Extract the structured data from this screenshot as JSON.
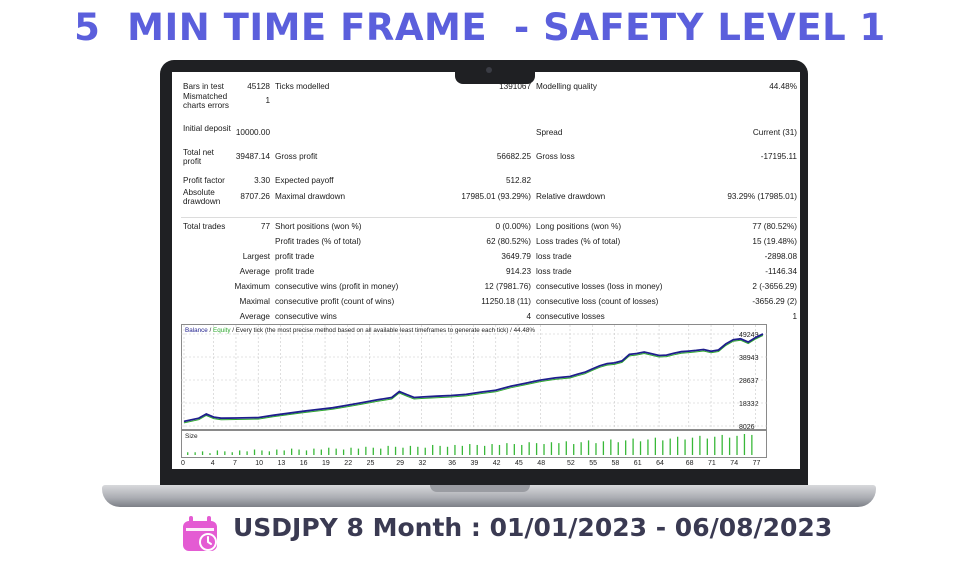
{
  "headline": "5  MIN TIME FRAME  - SAFETY LEVEL 1",
  "footer": "USDJPY 8 Month : 01/01/2023 - 06/08/2023",
  "colors": {
    "headline": "#5b5fdc",
    "footer_text": "#3a3a52",
    "calendar": "#e45bd3",
    "balance": "#1e1e8c",
    "equity": "#2ea82e",
    "volume": "#38b838"
  },
  "icons": {
    "footer": "calendar-clock-icon"
  },
  "report": {
    "rows": [
      {
        "l1": "Bars in test",
        "v1": "45128",
        "l2": "Ticks modelled",
        "v2": "1391067",
        "l3": "Modelling quality",
        "v3": "44.48%"
      },
      {
        "l1": "Mismatched charts errors",
        "v1": "1",
        "l2": "",
        "v2": "",
        "l3": "",
        "v3": ""
      },
      {
        "l1": "Initial deposit",
        "v1": "10000.00",
        "l2": "",
        "v2": "",
        "l3": "Spread",
        "v3": "Current (31)"
      },
      {
        "l1": "Total net profit",
        "v1": "39487.14",
        "l2": "Gross profit",
        "v2": "56682.25",
        "l3": "Gross loss",
        "v3": "-17195.11"
      },
      {
        "l1": "Profit factor",
        "v1": "3.30",
        "l2": "Expected payoff",
        "v2": "512.82",
        "l3": "",
        "v3": ""
      },
      {
        "l1": "Absolute drawdown",
        "v1": "8707.26",
        "l2": "Maximal drawdown",
        "v2": "17985.01 (93.29%)",
        "l3": "Relative drawdown",
        "v3": "93.29% (17985.01)"
      },
      {
        "l1": "Total trades",
        "v1": "77",
        "l2": "Short positions (won %)",
        "v2": "0 (0.00%)",
        "l3": "Long positions (won %)",
        "v3": "77 (80.52%)"
      },
      {
        "l1": "",
        "v1": "",
        "l2": "Profit trades (% of total)",
        "v2": "62 (80.52%)",
        "l3": "Loss trades (% of total)",
        "v3": "15 (19.48%)"
      },
      {
        "l1": "",
        "v1": "Largest",
        "l2": "profit trade",
        "v2": "3649.79",
        "l3": "loss trade",
        "v3": "-2898.08"
      },
      {
        "l1": "",
        "v1": "Average",
        "l2": "profit trade",
        "v2": "914.23",
        "l3": "loss trade",
        "v3": "-1146.34"
      },
      {
        "l1": "",
        "v1": "Maximum",
        "l2": "consecutive wins (profit in money)",
        "v2": "12 (7981.76)",
        "l3": "consecutive losses (loss in money)",
        "v3": "2 (-3656.29)"
      },
      {
        "l1": "",
        "v1": "Maximal",
        "l2": "consecutive profit (count of wins)",
        "v2": "11250.18 (11)",
        "l3": "consecutive loss (count of losses)",
        "v3": "-3656.29 (2)"
      },
      {
        "l1": "",
        "v1": "Average",
        "l2": "consecutive wins",
        "v2": "4",
        "l3": "consecutive losses",
        "v3": "1"
      }
    ]
  },
  "chart_data": {
    "type": "line",
    "legend": {
      "balance": "Balance",
      "sep1": " / ",
      "equity": "Equity",
      "rest": " / Every tick (the most precise method based on all available least timeframes to generate each tick) / 44.48%"
    },
    "yticks": [
      "49249",
      "38943",
      "28637",
      "18332",
      "8026"
    ],
    "ylim": [
      8026,
      49249
    ],
    "xticks": [
      "0",
      "4",
      "7",
      "10",
      "13",
      "16",
      "19",
      "22",
      "25",
      "29",
      "32",
      "36",
      "39",
      "42",
      "45",
      "48",
      "52",
      "55",
      "58",
      "61",
      "64",
      "68",
      "71",
      "74",
      "77"
    ],
    "xlim": [
      0,
      78
    ],
    "volume_label": "Size",
    "series": [
      {
        "x": [
          0,
          2,
          3,
          4,
          5,
          7,
          10,
          12,
          14,
          16,
          18,
          20,
          22,
          24,
          26,
          28,
          29,
          30,
          31,
          32,
          34,
          36,
          38,
          40,
          42,
          44,
          46,
          48,
          50,
          52,
          53,
          54,
          55,
          56,
          57,
          58,
          59,
          60,
          61,
          62,
          63,
          64,
          65,
          66,
          67,
          68,
          69,
          70,
          71,
          72,
          73,
          74,
          75,
          76,
          77,
          78
        ],
        "y": [
          10100,
          11500,
          13400,
          12000,
          11500,
          11600,
          11800,
          12800,
          13700,
          14600,
          15400,
          16200,
          17300,
          18500,
          19700,
          20800,
          23500,
          22100,
          20800,
          21000,
          21400,
          21700,
          22200,
          23200,
          24000,
          25800,
          27200,
          28600,
          29600,
          30200,
          31200,
          32100,
          33600,
          35000,
          36000,
          36300,
          37200,
          40100,
          40500,
          41200,
          40400,
          39600,
          39800,
          40600,
          41300,
          41600,
          41900,
          42300,
          41500,
          42100,
          44800,
          46700,
          47100,
          45600,
          47700,
          49249
        ]
      }
    ],
    "volumes": [
      3,
      3,
      4,
      2,
      5,
      4,
      3,
      5,
      4,
      6,
      5,
      4,
      6,
      5,
      7,
      6,
      5,
      7,
      6,
      8,
      7,
      6,
      8,
      7,
      9,
      8,
      7,
      10,
      9,
      8,
      10,
      9,
      8,
      11,
      10,
      9,
      11,
      10,
      12,
      11,
      10,
      12,
      11,
      13,
      12,
      11,
      14,
      13,
      12,
      14,
      13,
      15,
      12,
      14,
      16,
      13,
      15,
      17,
      14,
      16,
      18,
      15,
      17,
      19,
      16,
      18,
      20,
      17,
      19,
      21,
      18,
      20,
      22,
      19,
      21,
      23,
      22
    ]
  }
}
